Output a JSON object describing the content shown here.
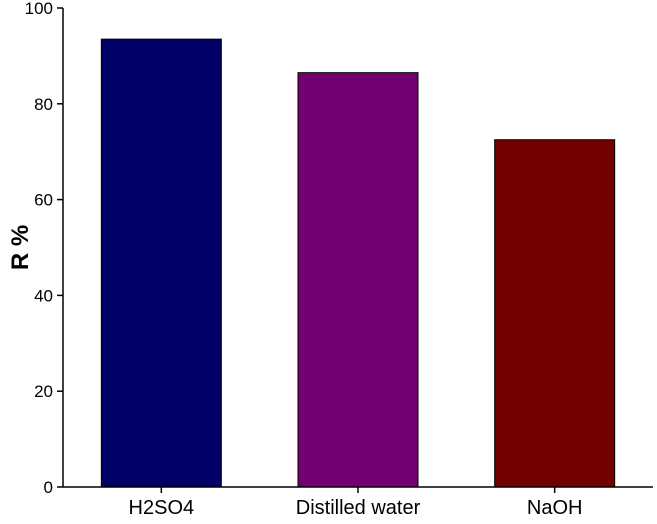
{
  "chart_data": {
    "type": "bar",
    "categories": [
      "H2SO4",
      "Distilled water",
      "NaOH"
    ],
    "values": [
      93.5,
      86.5,
      72.5
    ],
    "bar_colors": [
      "#000066",
      "#730070",
      "#720000"
    ],
    "xlabel": "",
    "ylabel": "R %",
    "ylim": [
      0,
      100
    ],
    "yticks": [
      0,
      20,
      40,
      60,
      80,
      100
    ],
    "grid": false
  }
}
